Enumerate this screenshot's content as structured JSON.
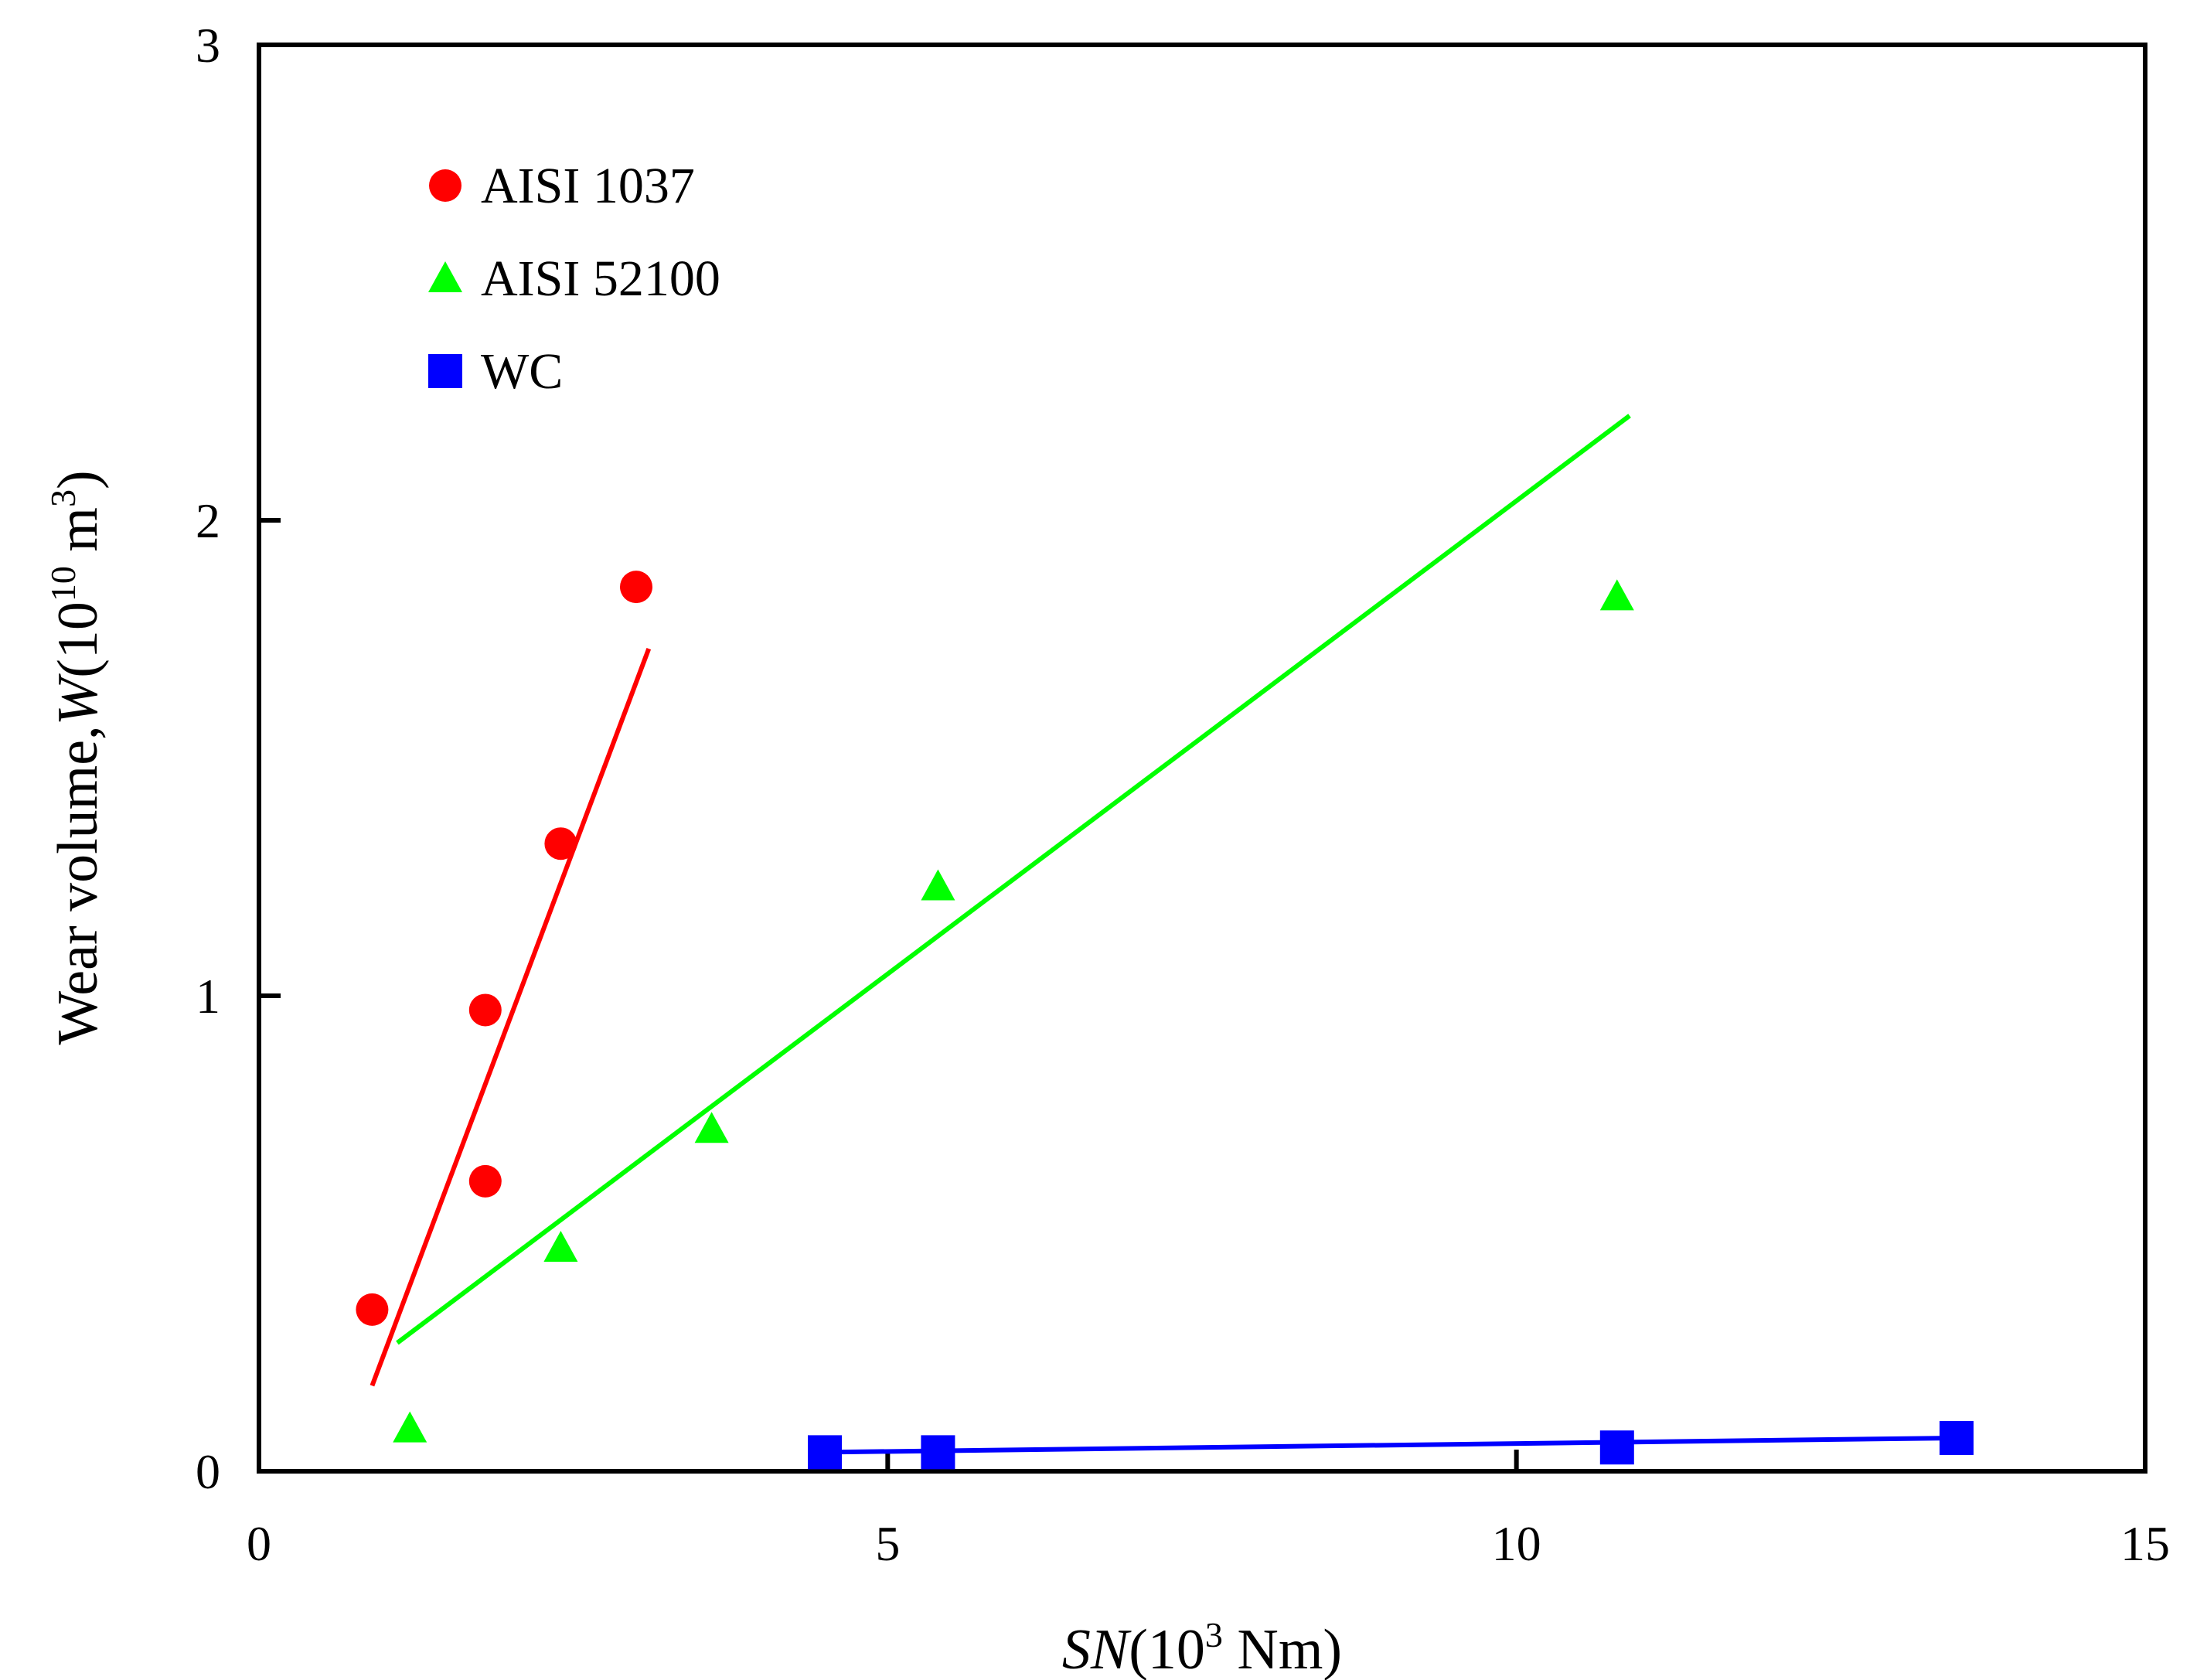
{
  "chart_data": {
    "type": "scatter",
    "xlim": [
      0,
      15
    ],
    "ylim": [
      0,
      3
    ],
    "xticks": [
      {
        "value": 0,
        "label": "0"
      },
      {
        "value": 5,
        "label": "5"
      },
      {
        "value": 10,
        "label": "10"
      },
      {
        "value": 15,
        "label": "15"
      }
    ],
    "yticks": [
      {
        "value": 0,
        "label": "0"
      },
      {
        "value": 1,
        "label": "1"
      },
      {
        "value": 2,
        "label": "2"
      },
      {
        "value": 3,
        "label": "3"
      }
    ],
    "xlabel": {
      "italic": "SN",
      "pre": "(10",
      "sup": "3",
      "post": " Nm)"
    },
    "ylabel": {
      "pre": "Wear volume,",
      "italic": "W",
      "mid": "(10",
      "sup": "10",
      "mid2": " m",
      "sup2": "3",
      "post": ")"
    },
    "legend_position": "top-left",
    "series": [
      {
        "name": "AISI 1037",
        "color": "#ff0000",
        "marker": "circle",
        "points": [
          [
            0.9,
            0.34
          ],
          [
            1.8,
            0.61
          ],
          [
            1.8,
            0.97
          ],
          [
            2.4,
            1.32
          ],
          [
            3.0,
            1.86
          ]
        ],
        "fit": [
          [
            0.9,
            0.18
          ],
          [
            3.1,
            1.73
          ]
        ]
      },
      {
        "name": "AISI 52100",
        "color": "#00ff00",
        "marker": "triangle",
        "points": [
          [
            1.2,
            0.09
          ],
          [
            2.4,
            0.47
          ],
          [
            3.6,
            0.72
          ],
          [
            5.4,
            1.23
          ],
          [
            10.8,
            1.84
          ]
        ],
        "fit": [
          [
            1.1,
            0.27
          ],
          [
            10.9,
            2.22
          ]
        ]
      },
      {
        "name": "WC",
        "color": "#0000ff",
        "marker": "square",
        "points": [
          [
            4.5,
            0.04
          ],
          [
            5.4,
            0.04
          ],
          [
            10.8,
            0.05
          ],
          [
            13.5,
            0.07
          ]
        ],
        "fit": [
          [
            4.5,
            0.04
          ],
          [
            13.5,
            0.07
          ]
        ]
      }
    ]
  }
}
